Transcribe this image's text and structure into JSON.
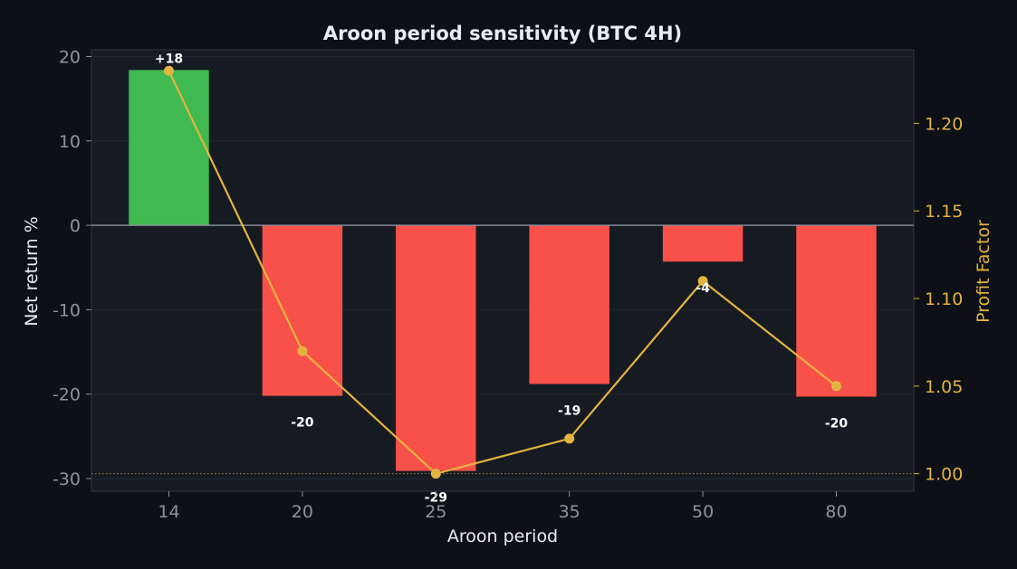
{
  "chart_data": {
    "type": "bar",
    "title": "Aroon period sensitivity (BTC 4H)",
    "xlabel": "Aroon period",
    "ylabel": "Net return %",
    "y2label": "Profit Factor",
    "categories": [
      "14",
      "20",
      "25",
      "35",
      "50",
      "80"
    ],
    "series": [
      {
        "type": "bar",
        "axis": "left",
        "values": [
          18.4,
          -20.2,
          -29.1,
          -18.8,
          -4.3,
          -20.3
        ],
        "labels": [
          "+18",
          "-20",
          "-29",
          "-19",
          "-4",
          "-20"
        ]
      },
      {
        "type": "line",
        "axis": "right",
        "values": [
          1.23,
          1.07,
          1.0,
          1.02,
          1.11,
          1.05
        ]
      }
    ],
    "ylim": [
      -31.5,
      20.8
    ],
    "yticks": [
      20,
      10,
      0,
      -10,
      -20,
      -30
    ],
    "y2lim": [
      0.99,
      1.242
    ],
    "y2ticks": [
      1.2,
      1.15,
      1.1,
      1.05,
      1.0
    ],
    "y2tick_labels": [
      "1.20",
      "1.15",
      "1.10",
      "1.05",
      "1.00"
    ],
    "reference_line_y2": 1.0,
    "grid": true,
    "colors": {
      "background": "#0d1117",
      "plot_background": "#161b22",
      "positive_bar": "#3fb950",
      "negative_bar": "#f85149",
      "line": "#e3b341",
      "text": "#e6edf3",
      "tick_text": "#8b949e",
      "zero_line": "#8b949e",
      "grid": "#21262d"
    }
  }
}
